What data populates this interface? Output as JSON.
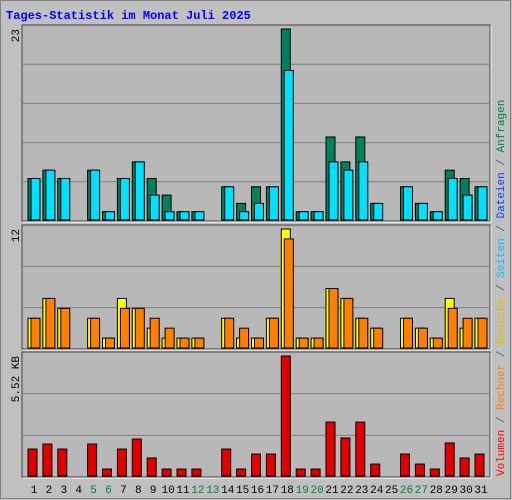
{
  "title": "Tages-Statistik im Monat Juli 2025",
  "legend_separator": " / ",
  "legend": [
    {
      "label": "Volumen",
      "color": "#ff0000"
    },
    {
      "label": "Rechner",
      "color": "#ff8000"
    },
    {
      "label": "Besuche",
      "color": "#e0c000"
    },
    {
      "label": "Seiten",
      "color": "#00c0ff"
    },
    {
      "label": "Dateien",
      "color": "#0040ff"
    },
    {
      "label": "Anfragen",
      "color": "#008040"
    }
  ],
  "days": [
    {
      "text": "1",
      "color": "#000000"
    },
    {
      "text": "2",
      "color": "#000000"
    },
    {
      "text": "3",
      "color": "#000000"
    },
    {
      "text": "4",
      "color": "#000000"
    },
    {
      "text": "5",
      "color": "#008040"
    },
    {
      "text": "6",
      "color": "#008040"
    },
    {
      "text": "7",
      "color": "#000000"
    },
    {
      "text": "8",
      "color": "#000000"
    },
    {
      "text": "9",
      "color": "#000000"
    },
    {
      "text": "10",
      "color": "#000000"
    },
    {
      "text": "11",
      "color": "#000000"
    },
    {
      "text": "12",
      "color": "#008040"
    },
    {
      "text": "13",
      "color": "#008040"
    },
    {
      "text": "14",
      "color": "#000000"
    },
    {
      "text": "15",
      "color": "#000000"
    },
    {
      "text": "16",
      "color": "#000000"
    },
    {
      "text": "17",
      "color": "#000000"
    },
    {
      "text": "18",
      "color": "#000000"
    },
    {
      "text": "19",
      "color": "#008040"
    },
    {
      "text": "20",
      "color": "#008040"
    },
    {
      "text": "21",
      "color": "#000000"
    },
    {
      "text": "22",
      "color": "#000000"
    },
    {
      "text": "23",
      "color": "#000000"
    },
    {
      "text": "24",
      "color": "#000000"
    },
    {
      "text": "25",
      "color": "#000000"
    },
    {
      "text": "26",
      "color": "#008040"
    },
    {
      "text": "27",
      "color": "#008040"
    },
    {
      "text": "28",
      "color": "#000000"
    },
    {
      "text": "29",
      "color": "#000000"
    },
    {
      "text": "30",
      "color": "#000000"
    },
    {
      "text": "31",
      "color": "#000000"
    }
  ],
  "chart_data": [
    {
      "type": "bar",
      "ylim": [
        0,
        23
      ],
      "yticks": [
        23
      ],
      "series": [
        {
          "color": "#00805c",
          "values": [
            5,
            6,
            5,
            0,
            6,
            1,
            5,
            7,
            5,
            3,
            1,
            1,
            0,
            4,
            2,
            4,
            4,
            23,
            1,
            1,
            10,
            7,
            10,
            2,
            0,
            4,
            2,
            1,
            6,
            5,
            4
          ]
        },
        {
          "color": "#00e0ff",
          "values": [
            5,
            6,
            5,
            0,
            6,
            1,
            5,
            7,
            3,
            1,
            1,
            1,
            0,
            4,
            1,
            2,
            4,
            18,
            1,
            1,
            7,
            6,
            7,
            2,
            0,
            4,
            2,
            1,
            5,
            3,
            4
          ]
        }
      ]
    },
    {
      "type": "bar",
      "ylim": [
        0,
        12
      ],
      "yticks": [
        12
      ],
      "series": [
        {
          "color": "#ffff00",
          "values": [
            3,
            5,
            4,
            0,
            3,
            1,
            5,
            4,
            2,
            1,
            1,
            1,
            0,
            3,
            1,
            1,
            3,
            12,
            1,
            1,
            6,
            5,
            3,
            2,
            0,
            3,
            2,
            1,
            5,
            2,
            3
          ]
        },
        {
          "color": "#ff8000",
          "values": [
            3,
            5,
            4,
            0,
            3,
            1,
            4,
            4,
            3,
            2,
            1,
            1,
            0,
            3,
            2,
            1,
            3,
            11,
            1,
            1,
            6,
            5,
            3,
            2,
            0,
            3,
            2,
            1,
            4,
            3,
            3
          ]
        }
      ]
    },
    {
      "type": "bar",
      "ylim": [
        0,
        5.52
      ],
      "yticks": [
        {
          "value": 5.52,
          "label": "5.52 KB"
        }
      ],
      "series": [
        {
          "color": "#e00000",
          "values": [
            1.24,
            1.47,
            1.24,
            0,
            1.47,
            0.32,
            1.24,
            1.7,
            0.83,
            0.32,
            0.32,
            0.32,
            0,
            1.24,
            0.32,
            1.01,
            1.01,
            5.52,
            0.32,
            0.32,
            2.48,
            1.75,
            2.48,
            0.55,
            0,
            1.01,
            0.55,
            0.32,
            1.52,
            0.83,
            1.01
          ]
        }
      ]
    }
  ]
}
